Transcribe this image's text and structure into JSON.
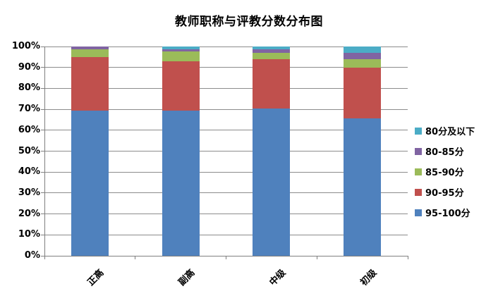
{
  "chart_data": {
    "type": "bar",
    "subtype": "stacked-100-percent-column",
    "title": "教师职称与评教分数分布图",
    "categories": [
      "正高",
      "副高",
      "中级",
      "初级"
    ],
    "series": [
      {
        "name": "95-100分",
        "color": "#4F81BD",
        "values": [
          69.5,
          69.5,
          70.5,
          65.5
        ]
      },
      {
        "name": "90-95分",
        "color": "#C0504D",
        "values": [
          25.5,
          23.5,
          23.5,
          24.5
        ]
      },
      {
        "name": "85-90分",
        "color": "#9BBB59",
        "values": [
          3.5,
          4.5,
          3.0,
          4.0
        ]
      },
      {
        "name": "80-85分",
        "color": "#8064A2",
        "values": [
          1.5,
          1.25,
          1.5,
          3.0
        ]
      },
      {
        "name": "80分及以下",
        "color": "#4BACC6",
        "values": [
          0,
          1.25,
          1.5,
          3.0
        ]
      }
    ],
    "stacking_order": "bottom-to-top as listed in series",
    "y_axis": {
      "min": 0,
      "max": 100,
      "step": 10,
      "tick_labels": [
        "0%",
        "10%",
        "20%",
        "30%",
        "40%",
        "50%",
        "60%",
        "70%",
        "80%",
        "90%",
        "100%"
      ]
    },
    "legend": {
      "position": "right",
      "order_top_to_bottom": [
        "80分及以下",
        "80-85分",
        "85-90分",
        "90-95分",
        "95-100分"
      ]
    },
    "grid": true,
    "colors": {
      "gridline": "#8C8C8C",
      "axis": "#7F7F7F",
      "text": "#000000",
      "background": "#FFFFFF"
    }
  }
}
